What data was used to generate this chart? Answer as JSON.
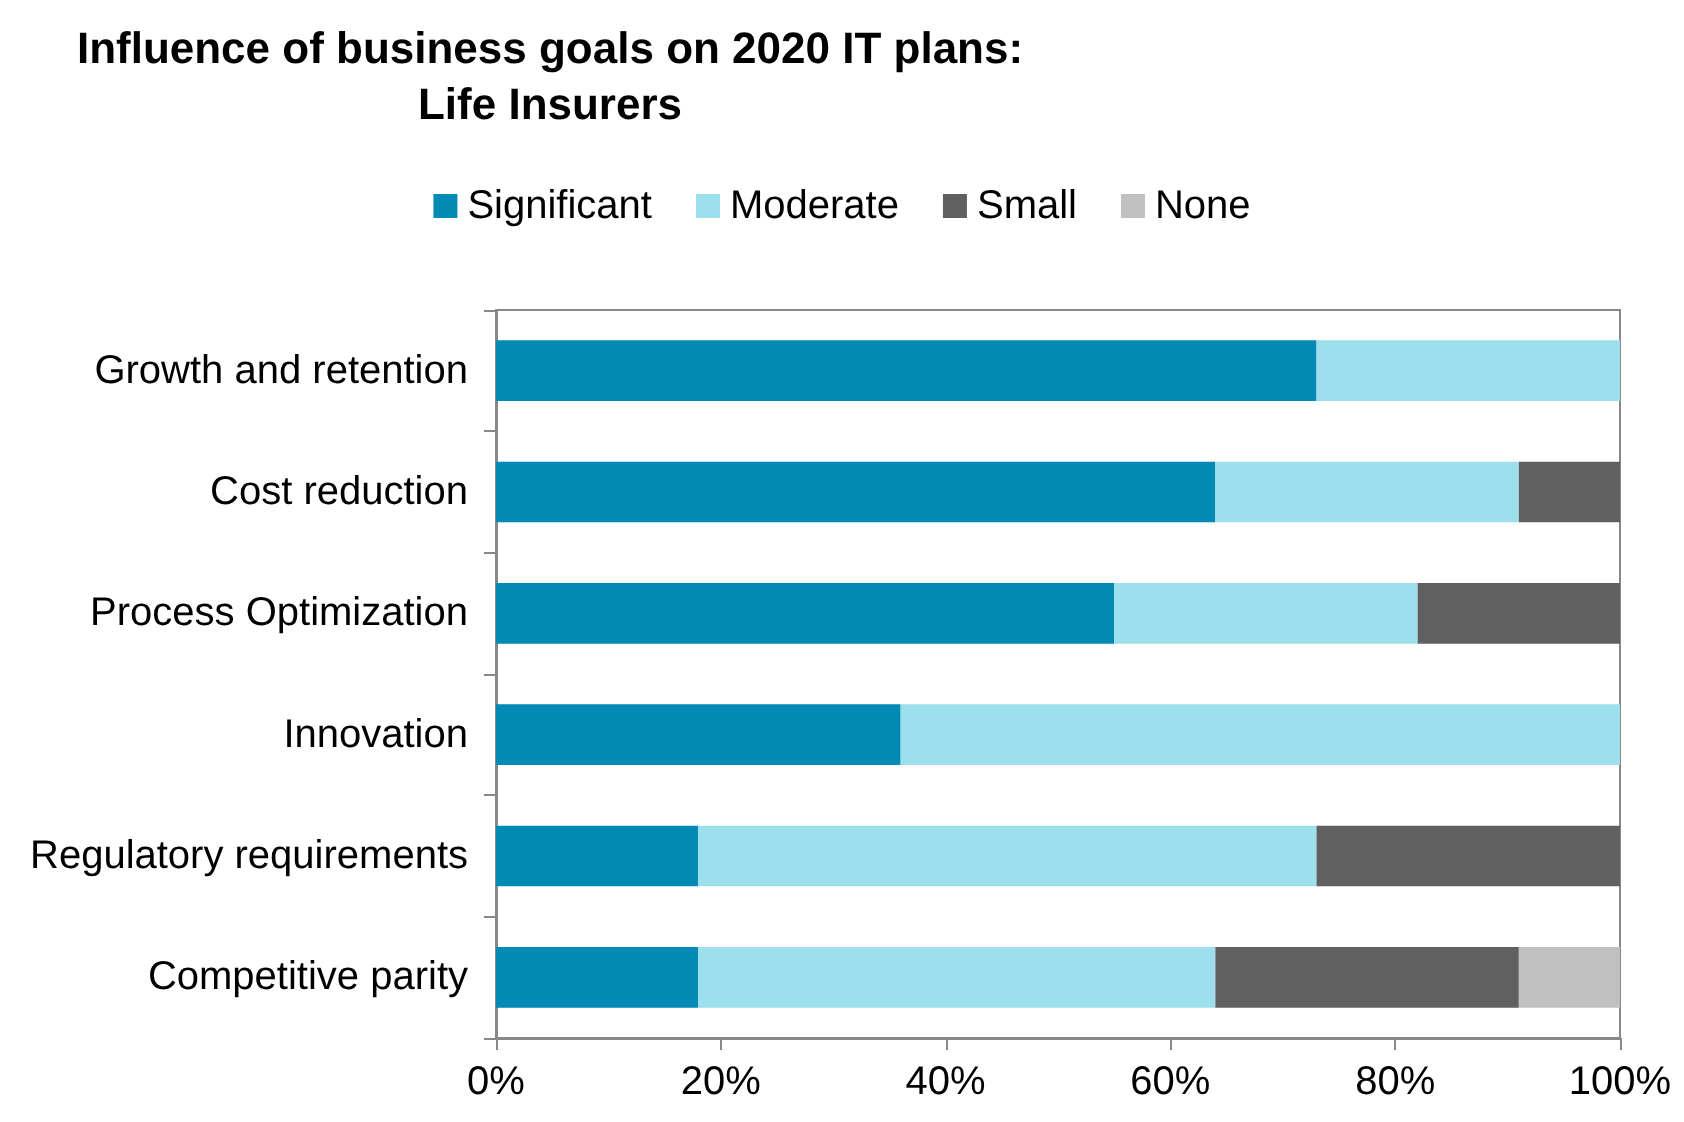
{
  "chart_data": {
    "type": "bar",
    "title": "Influence of business goals on 2020 IT plans:\nLife Insurers",
    "orientation": "horizontal",
    "stacked": true,
    "categories": [
      "Growth and retention",
      "Cost reduction",
      "Process Optimization",
      "Innovation",
      "Regulatory requirements",
      "Competitive parity"
    ],
    "series": [
      {
        "name": "Significant",
        "color": "#008ab4",
        "values": [
          73,
          64,
          55,
          36,
          18,
          18
        ]
      },
      {
        "name": "Moderate",
        "color": "#9ddfec",
        "values": [
          27,
          27,
          27,
          64,
          55,
          46
        ]
      },
      {
        "name": "Small",
        "color": "#606060",
        "values": [
          0,
          9,
          18,
          0,
          27,
          27
        ]
      },
      {
        "name": "None",
        "color": "#c0c0c0",
        "values": [
          0,
          0,
          0,
          0,
          0,
          9
        ]
      }
    ],
    "xlim": [
      0,
      100
    ],
    "xticks": [
      {
        "value": 0,
        "label": "0%"
      },
      {
        "value": 20,
        "label": "20%"
      },
      {
        "value": 40,
        "label": "40%"
      },
      {
        "value": 60,
        "label": "60%"
      },
      {
        "value": 80,
        "label": "80%"
      },
      {
        "value": 100,
        "label": "100%"
      }
    ],
    "grid": false,
    "legend": "top"
  }
}
